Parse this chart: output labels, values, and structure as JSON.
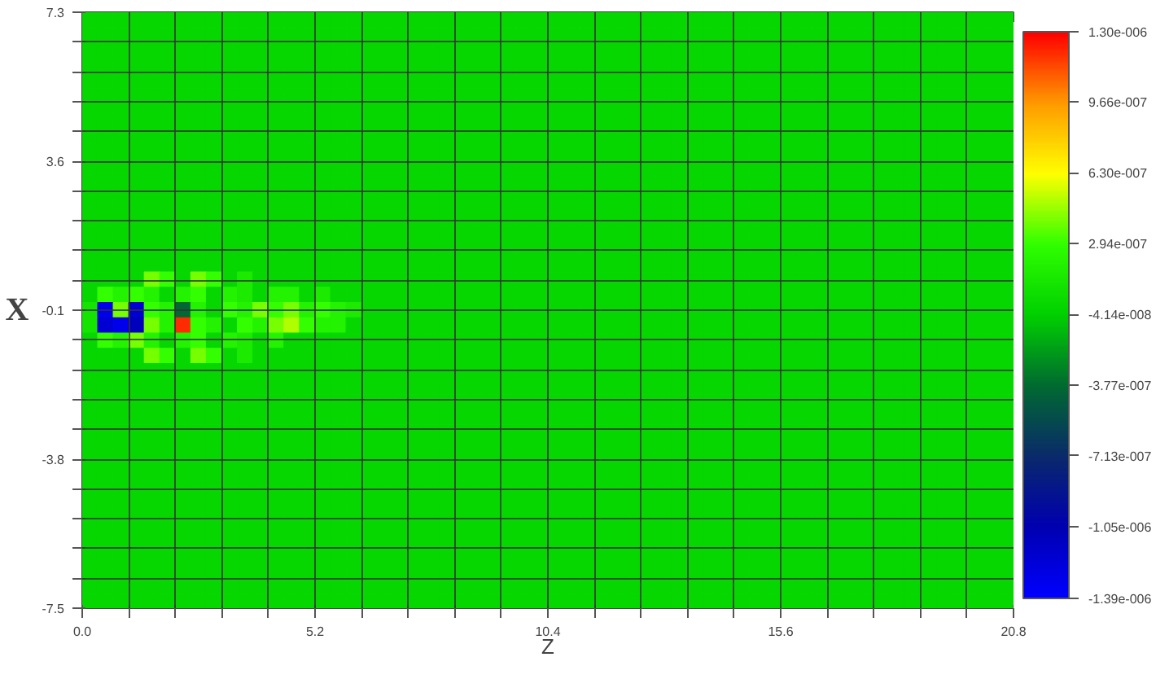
{
  "chart_data": {
    "type": "heatmap",
    "xlabel": "Z",
    "ylabel": "X",
    "xlim": [
      0,
      20.8
    ],
    "ylim": [
      -7.5,
      7.3
    ],
    "xticks": [
      {
        "value": 0,
        "label": "0.0"
      },
      {
        "value": 1.04,
        "label": null
      },
      {
        "value": 2.08,
        "label": null
      },
      {
        "value": 3.12,
        "label": null
      },
      {
        "value": 4.16,
        "label": null
      },
      5.2,
      {
        "value": 6.24,
        "label": null
      },
      {
        "value": 7.28,
        "label": null
      },
      {
        "value": 8.32,
        "label": null
      },
      {
        "value": 9.36,
        "label": null
      },
      10.4,
      {
        "value": 11.44,
        "label": null
      },
      {
        "value": 12.48,
        "label": null
      },
      {
        "value": 13.52,
        "label": null
      },
      {
        "value": 14.56,
        "label": null
      },
      15.6,
      {
        "value": 16.64,
        "label": null
      },
      {
        "value": 17.68,
        "label": null
      },
      {
        "value": 18.72,
        "label": null
      },
      {
        "value": 19.76,
        "label": null
      },
      20.8
    ],
    "yticks": [
      7.3,
      {
        "value": 6.56,
        "label": null
      },
      {
        "value": 5.82,
        "label": null
      },
      {
        "value": 5.08,
        "label": null
      },
      {
        "value": 4.34,
        "label": null
      },
      3.6,
      {
        "value": 2.86,
        "label": null
      },
      {
        "value": 2.12,
        "label": null
      },
      {
        "value": 1.38,
        "label": null
      },
      {
        "value": 0.64,
        "label": null
      },
      -0.1,
      {
        "value": -0.84,
        "label": null
      },
      {
        "value": -1.58,
        "label": null
      },
      {
        "value": -2.32,
        "label": null
      },
      {
        "value": -3.06,
        "label": null
      },
      -3.8,
      {
        "value": -4.54,
        "label": null
      },
      {
        "value": -5.28,
        "label": null
      },
      {
        "value": -6.02,
        "label": null
      },
      {
        "value": -6.76,
        "label": null
      },
      -7.5
    ],
    "grid": true,
    "clim": [
      -1.39e-06,
      1.3e-06
    ],
    "cticks": [
      {
        "value": 1.3e-06,
        "label": "1.30e-006"
      },
      {
        "value": 9.66e-07,
        "label": "9.66e-007"
      },
      {
        "value": 6.3e-07,
        "label": "6.30e-007"
      },
      {
        "value": 2.94e-07,
        "label": "2.94e-007"
      },
      {
        "value": -4.14e-08,
        "label": "-4.14e-008"
      },
      {
        "value": -3.77e-07,
        "label": "-3.77e-007"
      },
      {
        "value": -7.13e-07,
        "label": "-7.13e-007"
      },
      {
        "value": -1.05e-06,
        "label": "-1.05e-006"
      },
      {
        "value": -1.39e-06,
        "label": "-1.39e-006"
      }
    ],
    "cells": [
      [
        0,
        0,
        0,
        0,
        0,
        0,
        0,
        0,
        0,
        0,
        0,
        0,
        0,
        0,
        0,
        0,
        0,
        0,
        0,
        0,
        0,
        0,
        0,
        0,
        0,
        0,
        0,
        0,
        0,
        0,
        0,
        0,
        0,
        0,
        0,
        0,
        0,
        0,
        0,
        0,
        0,
        0,
        0,
        0,
        0,
        0,
        0,
        0,
        0,
        0,
        0,
        0,
        0,
        0,
        0,
        0,
        0,
        0,
        0,
        0
      ],
      [
        0,
        0,
        0,
        0,
        0,
        0,
        0,
        0,
        0,
        0,
        0,
        0,
        0,
        0,
        0,
        0,
        0,
        0,
        0,
        0,
        0,
        0,
        0,
        0,
        0,
        0,
        0,
        0,
        0,
        0,
        0,
        0,
        0,
        0,
        0,
        0,
        0,
        0,
        0,
        0,
        0,
        0,
        0,
        0,
        0,
        0,
        0,
        0,
        0,
        0,
        0,
        0,
        0,
        0,
        0,
        0,
        0,
        0,
        0,
        0
      ],
      [
        0,
        0,
        0,
        0,
        0,
        0,
        0,
        0,
        0,
        0,
        0,
        0,
        0,
        0,
        0,
        0,
        0,
        0,
        0,
        0,
        0,
        0,
        0,
        0,
        0,
        0,
        0,
        0,
        0,
        0,
        0,
        0,
        0,
        0,
        0,
        0,
        0,
        0,
        0,
        0,
        0,
        0,
        0,
        0,
        0,
        0,
        0,
        0,
        0,
        0,
        0,
        0,
        0,
        0,
        0,
        0,
        0,
        0,
        0,
        0
      ],
      [
        0,
        0,
        0,
        0,
        0,
        0,
        0,
        0,
        0,
        0,
        0,
        0,
        0,
        0,
        0,
        0,
        0,
        0,
        0,
        0,
        0,
        0,
        0,
        0,
        0,
        0,
        0,
        0,
        0,
        0,
        0,
        0,
        0,
        0,
        0,
        0,
        0,
        0,
        0,
        0,
        0,
        0,
        0,
        0,
        0,
        0,
        0,
        0,
        0,
        0,
        0,
        0,
        0,
        0,
        0,
        0,
        0,
        0,
        0,
        0
      ],
      [
        0,
        0,
        0,
        0,
        0,
        0,
        0,
        0,
        0,
        0,
        0,
        0,
        0,
        0,
        0,
        0,
        0,
        0,
        0,
        0,
        0,
        0,
        0,
        0,
        0,
        0,
        0,
        0,
        0,
        0,
        0,
        0,
        0,
        0,
        0,
        0,
        0,
        0,
        0,
        0,
        0,
        0,
        0,
        0,
        0,
        0,
        0,
        0,
        0,
        0,
        0,
        0,
        0,
        0,
        0,
        0,
        0,
        0,
        0,
        0
      ],
      [
        0,
        0,
        0,
        0,
        0,
        0,
        0,
        0,
        0,
        0,
        0,
        0,
        0,
        0,
        0,
        0,
        0,
        0,
        0,
        0,
        0,
        0,
        0,
        0,
        0,
        0,
        0,
        0,
        0,
        0,
        0,
        0,
        0,
        0,
        0,
        0,
        0,
        0,
        0,
        0,
        0,
        0,
        0,
        0,
        0,
        0,
        0,
        0,
        0,
        0,
        0,
        0,
        0,
        0,
        0,
        0,
        0,
        0,
        0,
        0
      ],
      [
        0,
        0,
        0,
        0,
        0,
        0,
        0,
        0,
        0,
        0,
        0,
        0,
        0,
        0,
        0,
        0,
        0,
        0,
        0,
        0,
        0,
        0,
        0,
        0,
        0,
        0,
        0,
        0,
        0,
        0,
        0,
        0,
        0,
        0,
        0,
        0,
        0,
        0,
        0,
        0,
        0,
        0,
        0,
        0,
        0,
        0,
        0,
        0,
        0,
        0,
        0,
        0,
        0,
        0,
        0,
        0,
        0,
        0,
        0,
        0
      ],
      [
        0,
        0,
        0,
        0,
        0,
        0,
        0,
        0,
        0,
        0,
        0,
        0,
        0,
        0,
        0,
        0,
        0,
        0,
        0,
        0,
        0,
        0,
        0,
        0,
        0,
        0,
        0,
        0,
        0,
        0,
        0,
        0,
        0,
        0,
        0,
        0,
        0,
        0,
        0,
        0,
        0,
        0,
        0,
        0,
        0,
        0,
        0,
        0,
        0,
        0,
        0,
        0,
        0,
        0,
        0,
        0,
        0,
        0,
        0,
        0
      ],
      [
        0,
        0,
        0,
        0,
        0,
        0,
        0,
        0,
        0,
        0,
        0,
        0,
        0,
        0,
        0,
        0,
        0,
        0,
        0,
        0,
        0,
        0,
        0,
        0,
        0,
        0,
        0,
        0,
        0,
        0,
        0,
        0,
        0,
        0,
        0,
        0,
        0,
        0,
        0,
        0,
        0,
        0,
        0,
        0,
        0,
        0,
        0,
        0,
        0,
        0,
        0,
        0,
        0,
        0,
        0,
        0,
        0,
        0,
        0,
        0
      ],
      [
        0,
        0,
        0,
        0,
        0,
        0,
        0,
        0,
        0,
        0,
        0,
        0,
        0,
        0,
        0,
        0,
        0,
        0,
        0,
        0,
        0,
        0,
        0,
        0,
        0,
        0,
        0,
        0,
        0,
        0,
        0,
        0,
        0,
        0,
        0,
        0,
        0,
        0,
        0,
        0,
        0,
        0,
        0,
        0,
        0,
        0,
        0,
        0,
        0,
        0,
        0,
        0,
        0,
        0,
        0,
        0,
        0,
        0,
        0,
        0
      ],
      [
        0,
        0,
        0,
        0,
        0,
        0,
        0,
        0,
        0,
        0,
        0,
        0,
        0,
        0,
        0,
        0,
        0,
        0,
        0,
        0,
        0,
        0,
        0,
        0,
        0,
        0,
        0,
        0,
        0,
        0,
        0,
        0,
        0,
        0,
        0,
        0,
        0,
        0,
        0,
        0,
        0,
        0,
        0,
        0,
        0,
        0,
        0,
        0,
        0,
        0,
        0,
        0,
        0,
        0,
        0,
        0,
        0,
        0,
        0,
        0
      ],
      [
        0,
        0,
        0,
        0,
        0,
        0,
        0,
        0,
        0,
        0,
        0,
        0,
        0,
        0,
        0,
        0,
        0,
        0,
        0,
        0,
        0,
        0,
        0,
        0,
        0,
        0,
        0,
        0,
        0,
        0,
        0,
        0,
        0,
        0,
        0,
        0,
        0,
        0,
        0,
        0,
        0,
        0,
        0,
        0,
        0,
        0,
        0,
        0,
        0,
        0,
        0,
        0,
        0,
        0,
        0,
        0,
        0,
        0,
        0,
        0
      ],
      [
        0,
        0,
        0,
        0,
        0,
        0,
        0,
        0,
        0,
        0,
        0,
        0,
        0,
        0,
        0,
        0,
        0,
        0,
        0,
        0,
        0,
        0,
        0,
        0,
        0,
        0,
        0,
        0,
        0,
        0,
        0,
        0,
        0,
        0,
        0,
        0,
        0,
        0,
        0,
        0,
        0,
        0,
        0,
        0,
        0,
        0,
        0,
        0,
        0,
        0,
        0,
        0,
        0,
        0,
        0,
        0,
        0,
        0,
        0,
        0
      ],
      [
        0,
        0,
        0,
        0,
        0,
        0,
        0,
        0,
        0,
        0,
        0,
        0,
        0,
        0,
        0,
        0,
        0,
        0,
        0,
        0,
        0,
        0,
        0,
        0,
        0,
        0,
        0,
        0,
        0,
        0,
        0,
        0,
        0,
        0,
        0,
        0,
        0,
        0,
        0,
        0,
        0,
        0,
        0,
        0,
        0,
        0,
        0,
        0,
        0,
        0,
        0,
        0,
        0,
        0,
        0,
        0,
        0,
        0,
        0,
        0
      ],
      [
        0,
        0,
        0,
        0,
        0,
        0,
        0,
        0,
        0,
        0,
        0,
        0,
        0,
        0,
        0,
        0,
        0,
        0,
        0,
        0,
        0,
        0,
        0,
        0,
        0,
        0,
        0,
        0,
        0,
        0,
        0,
        0,
        0,
        0,
        0,
        0,
        0,
        0,
        0,
        0,
        0,
        0,
        0,
        0,
        0,
        0,
        0,
        0,
        0,
        0,
        0,
        0,
        0,
        0,
        0,
        0,
        0,
        0,
        0,
        0
      ],
      [
        0,
        0,
        0,
        0,
        0,
        0,
        0,
        0,
        0,
        0,
        0,
        0,
        0,
        0,
        0,
        0,
        0,
        0,
        0,
        0,
        0,
        0,
        0,
        0,
        0,
        0,
        0,
        0,
        0,
        0,
        0,
        0,
        0,
        0,
        0,
        0,
        0,
        0,
        0,
        0,
        0,
        0,
        0,
        0,
        0,
        0,
        0,
        0,
        0,
        0,
        0,
        0,
        0,
        0,
        0,
        0,
        0,
        0,
        0,
        0
      ],
      [
        0,
        0,
        0,
        0,
        0,
        0,
        0,
        0,
        0,
        0,
        0,
        0,
        0,
        0,
        0,
        0,
        0,
        0,
        0,
        0,
        0,
        0,
        0,
        0,
        0,
        0,
        0,
        0,
        0,
        0,
        0,
        0,
        0,
        0,
        0,
        0,
        0,
        0,
        0,
        0,
        0,
        0,
        0,
        0,
        0,
        0,
        0,
        0,
        0,
        0,
        0,
        0,
        0,
        0,
        0,
        0,
        0,
        0,
        0,
        0
      ],
      [
        0,
        0,
        0,
        0,
        4e-07,
        3e-07,
        0,
        4e-07,
        3e-07,
        0,
        1.5e-07,
        0,
        0,
        0,
        0,
        0,
        0,
        0,
        0,
        0,
        0,
        0,
        0,
        0,
        0,
        0,
        0,
        0,
        0,
        0,
        0,
        0,
        0,
        0,
        0,
        0,
        0,
        0,
        0,
        0,
        0,
        0,
        0,
        0,
        0,
        0,
        0,
        0,
        0,
        0,
        0,
        0,
        0,
        0,
        0,
        0,
        0,
        0,
        0,
        0
      ],
      [
        0,
        3e-07,
        2e-07,
        3e-07,
        2e-07,
        0,
        2e-07,
        3e-07,
        0,
        2e-07,
        1.5e-07,
        0,
        2e-07,
        2e-07,
        0,
        1.5e-07,
        0,
        0,
        0,
        0,
        0,
        0,
        0,
        0,
        0,
        0,
        0,
        0,
        0,
        0,
        0,
        0,
        0,
        0,
        0,
        0,
        0,
        0,
        0,
        0,
        0,
        0,
        0,
        0,
        0,
        0,
        0,
        0,
        0,
        0,
        0,
        0,
        0,
        0,
        0,
        0,
        0,
        0,
        0,
        0
      ],
      [
        1e-07,
        -1.3e-06,
        4e-07,
        -1.2e-06,
        3e-07,
        2e-07,
        -4e-07,
        2e-07,
        0,
        3e-07,
        2e-07,
        4e-07,
        3e-07,
        4e-07,
        2e-07,
        3e-07,
        2e-07,
        1.5e-07,
        0,
        0,
        0,
        0,
        0,
        0,
        0,
        0,
        0,
        0,
        0,
        0,
        0,
        0,
        0,
        0,
        0,
        0,
        0,
        0,
        0,
        0,
        0,
        0,
        0,
        0,
        0,
        0,
        0,
        0,
        0,
        0,
        0,
        0,
        0,
        0,
        0,
        0,
        0,
        0,
        0,
        0
      ],
      [
        1e-07,
        -1.2e-06,
        -1.3e-06,
        -1.1e-06,
        4e-07,
        2e-07,
        1.2e-06,
        3e-07,
        2e-07,
        0,
        3e-07,
        2e-07,
        4e-07,
        5e-07,
        3e-07,
        2e-07,
        2e-07,
        0,
        0,
        0,
        0,
        0,
        0,
        0,
        0,
        0,
        0,
        0,
        0,
        0,
        0,
        0,
        0,
        0,
        0,
        0,
        0,
        0,
        0,
        0,
        0,
        0,
        0,
        0,
        0,
        0,
        0,
        0,
        0,
        0,
        0,
        0,
        0,
        0,
        0,
        0,
        0,
        0,
        0,
        0
      ],
      [
        0,
        3e-07,
        2e-07,
        4e-07,
        2e-07,
        0,
        2e-07,
        3e-07,
        0,
        2e-07,
        1.5e-07,
        0,
        2e-07,
        0,
        0,
        0,
        0,
        0,
        0,
        0,
        0,
        0,
        0,
        0,
        0,
        0,
        0,
        0,
        0,
        0,
        0,
        0,
        0,
        0,
        0,
        0,
        0,
        0,
        0,
        0,
        0,
        0,
        0,
        0,
        0,
        0,
        0,
        0,
        0,
        0,
        0,
        0,
        0,
        0,
        0,
        0,
        0,
        0,
        0,
        0
      ],
      [
        0,
        0,
        0,
        0,
        4e-07,
        3e-07,
        0,
        4e-07,
        3e-07,
        0,
        1.5e-07,
        0,
        0,
        0,
        0,
        0,
        0,
        0,
        0,
        0,
        0,
        0,
        0,
        0,
        0,
        0,
        0,
        0,
        0,
        0,
        0,
        0,
        0,
        0,
        0,
        0,
        0,
        0,
        0,
        0,
        0,
        0,
        0,
        0,
        0,
        0,
        0,
        0,
        0,
        0,
        0,
        0,
        0,
        0,
        0,
        0,
        0,
        0,
        0,
        0
      ],
      [
        0,
        0,
        0,
        0,
        0,
        0,
        0,
        0,
        0,
        0,
        0,
        0,
        0,
        0,
        0,
        0,
        0,
        0,
        0,
        0,
        0,
        0,
        0,
        0,
        0,
        0,
        0,
        0,
        0,
        0,
        0,
        0,
        0,
        0,
        0,
        0,
        0,
        0,
        0,
        0,
        0,
        0,
        0,
        0,
        0,
        0,
        0,
        0,
        0,
        0,
        0,
        0,
        0,
        0,
        0,
        0,
        0,
        0,
        0,
        0
      ],
      [
        0,
        0,
        0,
        0,
        0,
        0,
        0,
        0,
        0,
        0,
        0,
        0,
        0,
        0,
        0,
        0,
        0,
        0,
        0,
        0,
        0,
        0,
        0,
        0,
        0,
        0,
        0,
        0,
        0,
        0,
        0,
        0,
        0,
        0,
        0,
        0,
        0,
        0,
        0,
        0,
        0,
        0,
        0,
        0,
        0,
        0,
        0,
        0,
        0,
        0,
        0,
        0,
        0,
        0,
        0,
        0,
        0,
        0,
        0,
        0
      ],
      [
        0,
        0,
        0,
        0,
        0,
        0,
        0,
        0,
        0,
        0,
        0,
        0,
        0,
        0,
        0,
        0,
        0,
        0,
        0,
        0,
        0,
        0,
        0,
        0,
        0,
        0,
        0,
        0,
        0,
        0,
        0,
        0,
        0,
        0,
        0,
        0,
        0,
        0,
        0,
        0,
        0,
        0,
        0,
        0,
        0,
        0,
        0,
        0,
        0,
        0,
        0,
        0,
        0,
        0,
        0,
        0,
        0,
        0,
        0,
        0
      ],
      [
        0,
        0,
        0,
        0,
        0,
        0,
        0,
        0,
        0,
        0,
        0,
        0,
        0,
        0,
        0,
        0,
        0,
        0,
        0,
        0,
        0,
        0,
        0,
        0,
        0,
        0,
        0,
        0,
        0,
        0,
        0,
        0,
        0,
        0,
        0,
        0,
        0,
        0,
        0,
        0,
        0,
        0,
        0,
        0,
        0,
        0,
        0,
        0,
        0,
        0,
        0,
        0,
        0,
        0,
        0,
        0,
        0,
        0,
        0,
        0
      ],
      [
        0,
        0,
        0,
        0,
        0,
        0,
        0,
        0,
        0,
        0,
        0,
        0,
        0,
        0,
        0,
        0,
        0,
        0,
        0,
        0,
        0,
        0,
        0,
        0,
        0,
        0,
        0,
        0,
        0,
        0,
        0,
        0,
        0,
        0,
        0,
        0,
        0,
        0,
        0,
        0,
        0,
        0,
        0,
        0,
        0,
        0,
        0,
        0,
        0,
        0,
        0,
        0,
        0,
        0,
        0,
        0,
        0,
        0,
        0,
        0
      ],
      [
        0,
        0,
        0,
        0,
        0,
        0,
        0,
        0,
        0,
        0,
        0,
        0,
        0,
        0,
        0,
        0,
        0,
        0,
        0,
        0,
        0,
        0,
        0,
        0,
        0,
        0,
        0,
        0,
        0,
        0,
        0,
        0,
        0,
        0,
        0,
        0,
        0,
        0,
        0,
        0,
        0,
        0,
        0,
        0,
        0,
        0,
        0,
        0,
        0,
        0,
        0,
        0,
        0,
        0,
        0,
        0,
        0,
        0,
        0,
        0
      ],
      [
        0,
        0,
        0,
        0,
        0,
        0,
        0,
        0,
        0,
        0,
        0,
        0,
        0,
        0,
        0,
        0,
        0,
        0,
        0,
        0,
        0,
        0,
        0,
        0,
        0,
        0,
        0,
        0,
        0,
        0,
        0,
        0,
        0,
        0,
        0,
        0,
        0,
        0,
        0,
        0,
        0,
        0,
        0,
        0,
        0,
        0,
        0,
        0,
        0,
        0,
        0,
        0,
        0,
        0,
        0,
        0,
        0,
        0,
        0,
        0
      ],
      [
        0,
        0,
        0,
        0,
        0,
        0,
        0,
        0,
        0,
        0,
        0,
        0,
        0,
        0,
        0,
        0,
        0,
        0,
        0,
        0,
        0,
        0,
        0,
        0,
        0,
        0,
        0,
        0,
        0,
        0,
        0,
        0,
        0,
        0,
        0,
        0,
        0,
        0,
        0,
        0,
        0,
        0,
        0,
        0,
        0,
        0,
        0,
        0,
        0,
        0,
        0,
        0,
        0,
        0,
        0,
        0,
        0,
        0,
        0,
        0
      ],
      [
        0,
        0,
        0,
        0,
        0,
        0,
        0,
        0,
        0,
        0,
        0,
        0,
        0,
        0,
        0,
        0,
        0,
        0,
        0,
        0,
        0,
        0,
        0,
        0,
        0,
        0,
        0,
        0,
        0,
        0,
        0,
        0,
        0,
        0,
        0,
        0,
        0,
        0,
        0,
        0,
        0,
        0,
        0,
        0,
        0,
        0,
        0,
        0,
        0,
        0,
        0,
        0,
        0,
        0,
        0,
        0,
        0,
        0,
        0,
        0
      ],
      [
        0,
        0,
        0,
        0,
        0,
        0,
        0,
        0,
        0,
        0,
        0,
        0,
        0,
        0,
        0,
        0,
        0,
        0,
        0,
        0,
        0,
        0,
        0,
        0,
        0,
        0,
        0,
        0,
        0,
        0,
        0,
        0,
        0,
        0,
        0,
        0,
        0,
        0,
        0,
        0,
        0,
        0,
        0,
        0,
        0,
        0,
        0,
        0,
        0,
        0,
        0,
        0,
        0,
        0,
        0,
        0,
        0,
        0,
        0,
        0
      ],
      [
        0,
        0,
        0,
        0,
        0,
        0,
        0,
        0,
        0,
        0,
        0,
        0,
        0,
        0,
        0,
        0,
        0,
        0,
        0,
        0,
        0,
        0,
        0,
        0,
        0,
        0,
        0,
        0,
        0,
        0,
        0,
        0,
        0,
        0,
        0,
        0,
        0,
        0,
        0,
        0,
        0,
        0,
        0,
        0,
        0,
        0,
        0,
        0,
        0,
        0,
        0,
        0,
        0,
        0,
        0,
        0,
        0,
        0,
        0,
        0
      ],
      [
        0,
        0,
        0,
        0,
        0,
        0,
        0,
        0,
        0,
        0,
        0,
        0,
        0,
        0,
        0,
        0,
        0,
        0,
        0,
        0,
        0,
        0,
        0,
        0,
        0,
        0,
        0,
        0,
        0,
        0,
        0,
        0,
        0,
        0,
        0,
        0,
        0,
        0,
        0,
        0,
        0,
        0,
        0,
        0,
        0,
        0,
        0,
        0,
        0,
        0,
        0,
        0,
        0,
        0,
        0,
        0,
        0,
        0,
        0,
        0
      ],
      [
        0,
        0,
        0,
        0,
        0,
        0,
        0,
        0,
        0,
        0,
        0,
        0,
        0,
        0,
        0,
        0,
        0,
        0,
        0,
        0,
        0,
        0,
        0,
        0,
        0,
        0,
        0,
        0,
        0,
        0,
        0,
        0,
        0,
        0,
        0,
        0,
        0,
        0,
        0,
        0,
        0,
        0,
        0,
        0,
        0,
        0,
        0,
        0,
        0,
        0,
        0,
        0,
        0,
        0,
        0,
        0,
        0,
        0,
        0,
        0
      ],
      [
        0,
        0,
        0,
        0,
        0,
        0,
        0,
        0,
        0,
        0,
        0,
        0,
        0,
        0,
        0,
        0,
        0,
        0,
        0,
        0,
        0,
        0,
        0,
        0,
        0,
        0,
        0,
        0,
        0,
        0,
        0,
        0,
        0,
        0,
        0,
        0,
        0,
        0,
        0,
        0,
        0,
        0,
        0,
        0,
        0,
        0,
        0,
        0,
        0,
        0,
        0,
        0,
        0,
        0,
        0,
        0,
        0,
        0,
        0,
        0
      ],
      [
        0,
        0,
        0,
        0,
        0,
        0,
        0,
        0,
        0,
        0,
        0,
        0,
        0,
        0,
        0,
        0,
        0,
        0,
        0,
        0,
        0,
        0,
        0,
        0,
        0,
        0,
        0,
        0,
        0,
        0,
        0,
        0,
        0,
        0,
        0,
        0,
        0,
        0,
        0,
        0,
        0,
        0,
        0,
        0,
        0,
        0,
        0,
        0,
        0,
        0,
        0,
        0,
        0,
        0,
        0,
        0,
        0,
        0,
        0,
        0
      ],
      [
        0,
        0,
        0,
        0,
        0,
        0,
        0,
        0,
        0,
        0,
        0,
        0,
        0,
        0,
        0,
        0,
        0,
        0,
        0,
        0,
        0,
        0,
        0,
        0,
        0,
        0,
        0,
        0,
        0,
        0,
        0,
        0,
        0,
        0,
        0,
        0,
        0,
        0,
        0,
        0,
        0,
        0,
        0,
        0,
        0,
        0,
        0,
        0,
        0,
        0,
        0,
        0,
        0,
        0,
        0,
        0,
        0,
        0,
        0,
        0
      ]
    ]
  }
}
